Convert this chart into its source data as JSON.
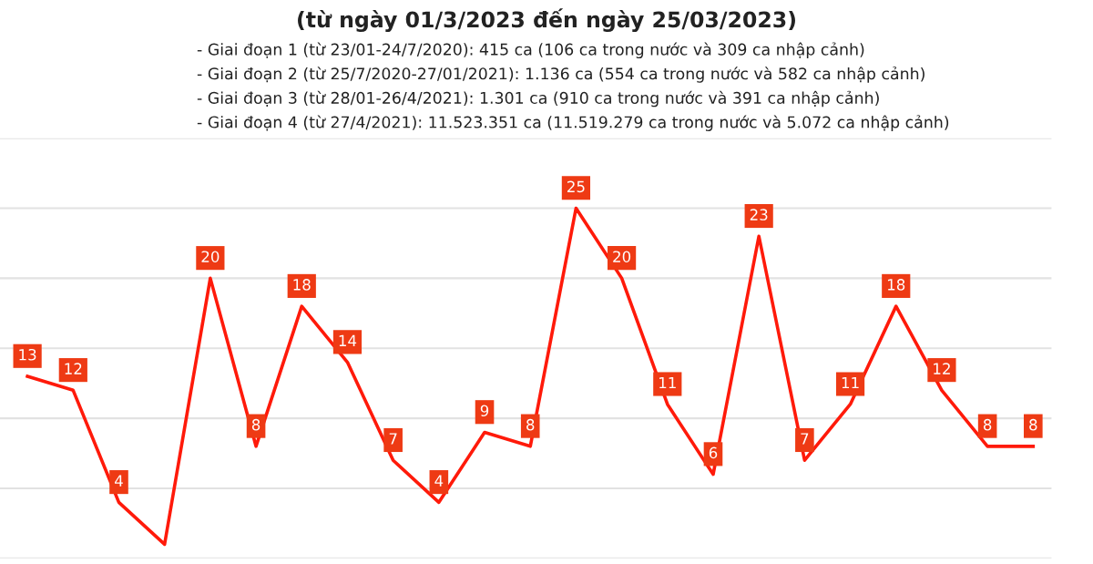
{
  "chart_data": {
    "type": "line",
    "title": "(từ ngày 01/3/2023 đến ngày 25/03/2023)",
    "annotations": [
      "- Giai đoạn 1 (từ 23/01-24/7/2020): 415 ca (106 ca trong nước và 309 ca nhập cảnh)",
      "- Giai đoạn 2 (từ 25/7/2020-27/01/2021): 1.136 ca (554 ca trong nước và 582 ca nhập cảnh)",
      "- Giai đoạn 3 (từ 28/01-26/4/2021): 1.301 ca (910 ca trong nước và 391 ca nhập cảnh)",
      "- Giai đoạn 4 (từ 27/4/2021): 11.523.351 ca (11.519.279 ca trong nước và 5.072 ca nhập cảnh)"
    ],
    "categories": [
      null,
      null,
      null,
      null,
      null,
      null,
      null,
      null,
      null,
      null,
      null,
      null,
      null,
      null,
      null,
      null,
      null,
      null,
      null,
      null,
      null,
      null,
      null
    ],
    "series": [
      {
        "color": "#ff1a0a",
        "values": [
          13,
          12,
          4,
          1,
          20,
          8,
          18,
          14,
          7,
          4,
          9,
          8,
          25,
          20,
          11,
          6,
          23,
          7,
          11,
          18,
          12,
          8,
          8
        ],
        "value_labels": [
          "13",
          "12",
          "4",
          null,
          "20",
          "8",
          "18",
          "14",
          "7",
          "4",
          "9",
          "8",
          "25",
          "20",
          "11",
          "6",
          "23",
          "7",
          "11",
          "18",
          "12",
          "8",
          "8"
        ]
      }
    ],
    "ylim": [
      0,
      30
    ],
    "yticks": [
      {
        "value": 0,
        "label": null
      },
      {
        "value": 5,
        "label": null
      },
      {
        "value": 10,
        "label": null
      },
      {
        "value": 15,
        "label": null
      },
      {
        "value": 20,
        "label": null
      },
      {
        "value": 25,
        "label": null
      },
      {
        "value": 30,
        "label": null
      }
    ],
    "grid": "y",
    "marker": "none",
    "line_style": "solid"
  }
}
